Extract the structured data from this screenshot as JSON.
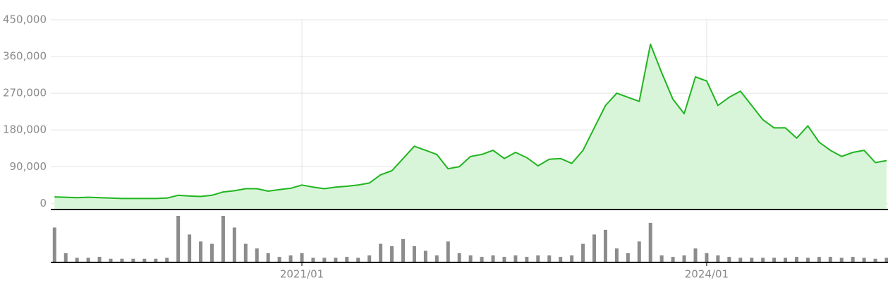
{
  "chart_data": {
    "type": "line",
    "categories": [
      null,
      null,
      null,
      null,
      null,
      null,
      null,
      null,
      null,
      null,
      null,
      null,
      null,
      null,
      null,
      null,
      null,
      null,
      null,
      null,
      null,
      null,
      "2021/01",
      null,
      null,
      null,
      null,
      null,
      null,
      null,
      null,
      null,
      null,
      null,
      null,
      null,
      null,
      null,
      null,
      null,
      null,
      null,
      null,
      null,
      null,
      null,
      null,
      null,
      null,
      null,
      null,
      null,
      null,
      null,
      null,
      null,
      null,
      null,
      "2024/01",
      null,
      null,
      null,
      null,
      null,
      null,
      null,
      null,
      null,
      null,
      null,
      null,
      null,
      null,
      null,
      null
    ],
    "series": [
      {
        "color": "#1fb51f",
        "fill": "#d9f5d9",
        "values": [
          16000,
          15000,
          14000,
          15000,
          14000,
          13000,
          12000,
          12000,
          12000,
          12000,
          13000,
          20000,
          18000,
          17000,
          20000,
          28000,
          31000,
          36000,
          36000,
          30000,
          34000,
          37000,
          45000,
          40000,
          36000,
          40000,
          42000,
          45000,
          50000,
          70000,
          80000,
          110000,
          140000,
          130000,
          120000,
          85000,
          90000,
          115000,
          120000,
          130000,
          110000,
          125000,
          112000,
          92000,
          108000,
          110000,
          98000,
          130000,
          185000,
          240000,
          270000,
          260000,
          250000,
          390000,
          320000,
          255000,
          220000,
          310000,
          300000,
          240000,
          260000,
          275000,
          240000,
          205000,
          185000,
          185000,
          160000,
          190000,
          150000,
          130000,
          115000,
          125000,
          130000,
          100000,
          105000
        ]
      }
    ],
    "volume": {
      "color": "#8c8c8c",
      "ylim": [
        0,
        100
      ],
      "values": [
        75,
        20,
        10,
        10,
        12,
        8,
        8,
        8,
        8,
        8,
        10,
        100,
        60,
        45,
        40,
        100,
        75,
        40,
        30,
        20,
        12,
        15,
        20,
        10,
        10,
        10,
        12,
        10,
        15,
        40,
        35,
        50,
        35,
        25,
        15,
        45,
        20,
        15,
        12,
        15,
        12,
        15,
        12,
        15,
        15,
        12,
        15,
        40,
        60,
        70,
        30,
        20,
        45,
        85,
        15,
        12,
        15,
        30,
        20,
        15,
        12,
        10,
        10,
        10,
        10,
        10,
        12,
        10,
        12,
        12,
        10,
        12,
        10,
        8,
        10
      ]
    },
    "ylim": [
      -15000,
      450000
    ],
    "yticks": [
      {
        "value": 0,
        "label": "0"
      },
      {
        "value": 90000,
        "label": "90,000"
      },
      {
        "value": 180000,
        "label": "180,000"
      },
      {
        "value": 270000,
        "label": "270,000"
      },
      {
        "value": 360000,
        "label": "360,000"
      },
      {
        "value": 450000,
        "label": "450,000"
      }
    ],
    "grid": true
  }
}
